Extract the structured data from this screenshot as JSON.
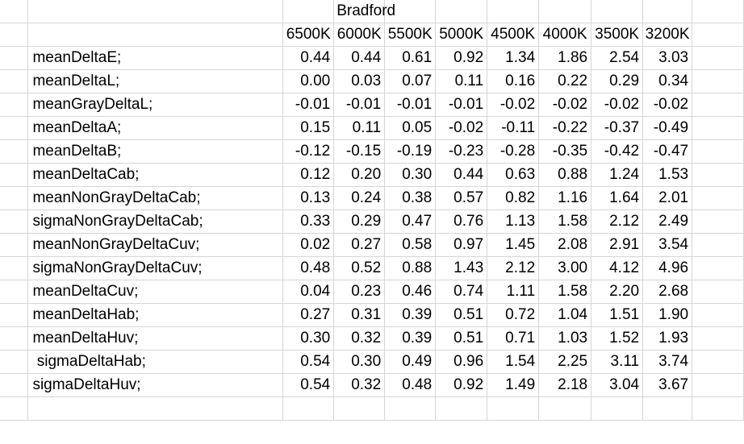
{
  "sheet": {
    "title": "Bradford",
    "columns": [
      "6500K",
      "6000K",
      "5500K",
      "5000K",
      "4500K",
      "4000K",
      "3500K",
      "3200K"
    ],
    "rows": [
      {
        "label": "meanDeltaE;",
        "values": [
          "0.44",
          "0.44",
          "0.61",
          "0.92",
          "1.34",
          "1.86",
          "2.54",
          "3.03"
        ]
      },
      {
        "label": "meanDeltaL;",
        "values": [
          "0.00",
          "0.03",
          "0.07",
          "0.11",
          "0.16",
          "0.22",
          "0.29",
          "0.34"
        ]
      },
      {
        "label": "meanGrayDeltaL;",
        "values": [
          "-0.01",
          "-0.01",
          "-0.01",
          "-0.01",
          "-0.02",
          "-0.02",
          "-0.02",
          "-0.02"
        ]
      },
      {
        "label": "meanDeltaA;",
        "values": [
          "0.15",
          "0.11",
          "0.05",
          "-0.02",
          "-0.11",
          "-0.22",
          "-0.37",
          "-0.49"
        ]
      },
      {
        "label": "meanDeltaB;",
        "values": [
          "-0.12",
          "-0.15",
          "-0.19",
          "-0.23",
          "-0.28",
          "-0.35",
          "-0.42",
          "-0.47"
        ]
      },
      {
        "label": "meanDeltaCab;",
        "values": [
          "0.12",
          "0.20",
          "0.30",
          "0.44",
          "0.63",
          "0.88",
          "1.24",
          "1.53"
        ]
      },
      {
        "label": "meanNonGrayDeltaCab;",
        "values": [
          "0.13",
          "0.24",
          "0.38",
          "0.57",
          "0.82",
          "1.16",
          "1.64",
          "2.01"
        ]
      },
      {
        "label": "sigmaNonGrayDeltaCab;",
        "values": [
          "0.33",
          "0.29",
          "0.47",
          "0.76",
          "1.13",
          "1.58",
          "2.12",
          "2.49"
        ]
      },
      {
        "label": "meanNonGrayDeltaCuv;",
        "values": [
          "0.02",
          "0.27",
          "0.58",
          "0.97",
          "1.45",
          "2.08",
          "2.91",
          "3.54"
        ]
      },
      {
        "label": "sigmaNonGrayDeltaCuv;",
        "values": [
          "0.48",
          "0.52",
          "0.88",
          "1.43",
          "2.12",
          "3.00",
          "4.12",
          "4.96"
        ]
      },
      {
        "label": "meanDeltaCuv;",
        "values": [
          "0.04",
          "0.23",
          "0.46",
          "0.74",
          "1.11",
          "1.58",
          "2.20",
          "2.68"
        ]
      },
      {
        "label": "meanDeltaHab;",
        "values": [
          "0.27",
          "0.31",
          "0.39",
          "0.51",
          "0.72",
          "1.04",
          "1.51",
          "1.90"
        ]
      },
      {
        "label": "meanDeltaHuv;",
        "values": [
          "0.30",
          "0.32",
          "0.39",
          "0.51",
          "0.71",
          "1.03",
          "1.52",
          "1.93"
        ]
      },
      {
        "label": " sigmaDeltaHab;",
        "values": [
          "0.54",
          "0.30",
          "0.49",
          "0.96",
          "1.54",
          "2.25",
          "3.11",
          "3.74"
        ]
      },
      {
        "label": "sigmaDeltaHuv;",
        "values": [
          "0.54",
          "0.32",
          "0.48",
          "0.92",
          "1.49",
          "2.18",
          "3.04",
          "3.67"
        ]
      }
    ]
  }
}
